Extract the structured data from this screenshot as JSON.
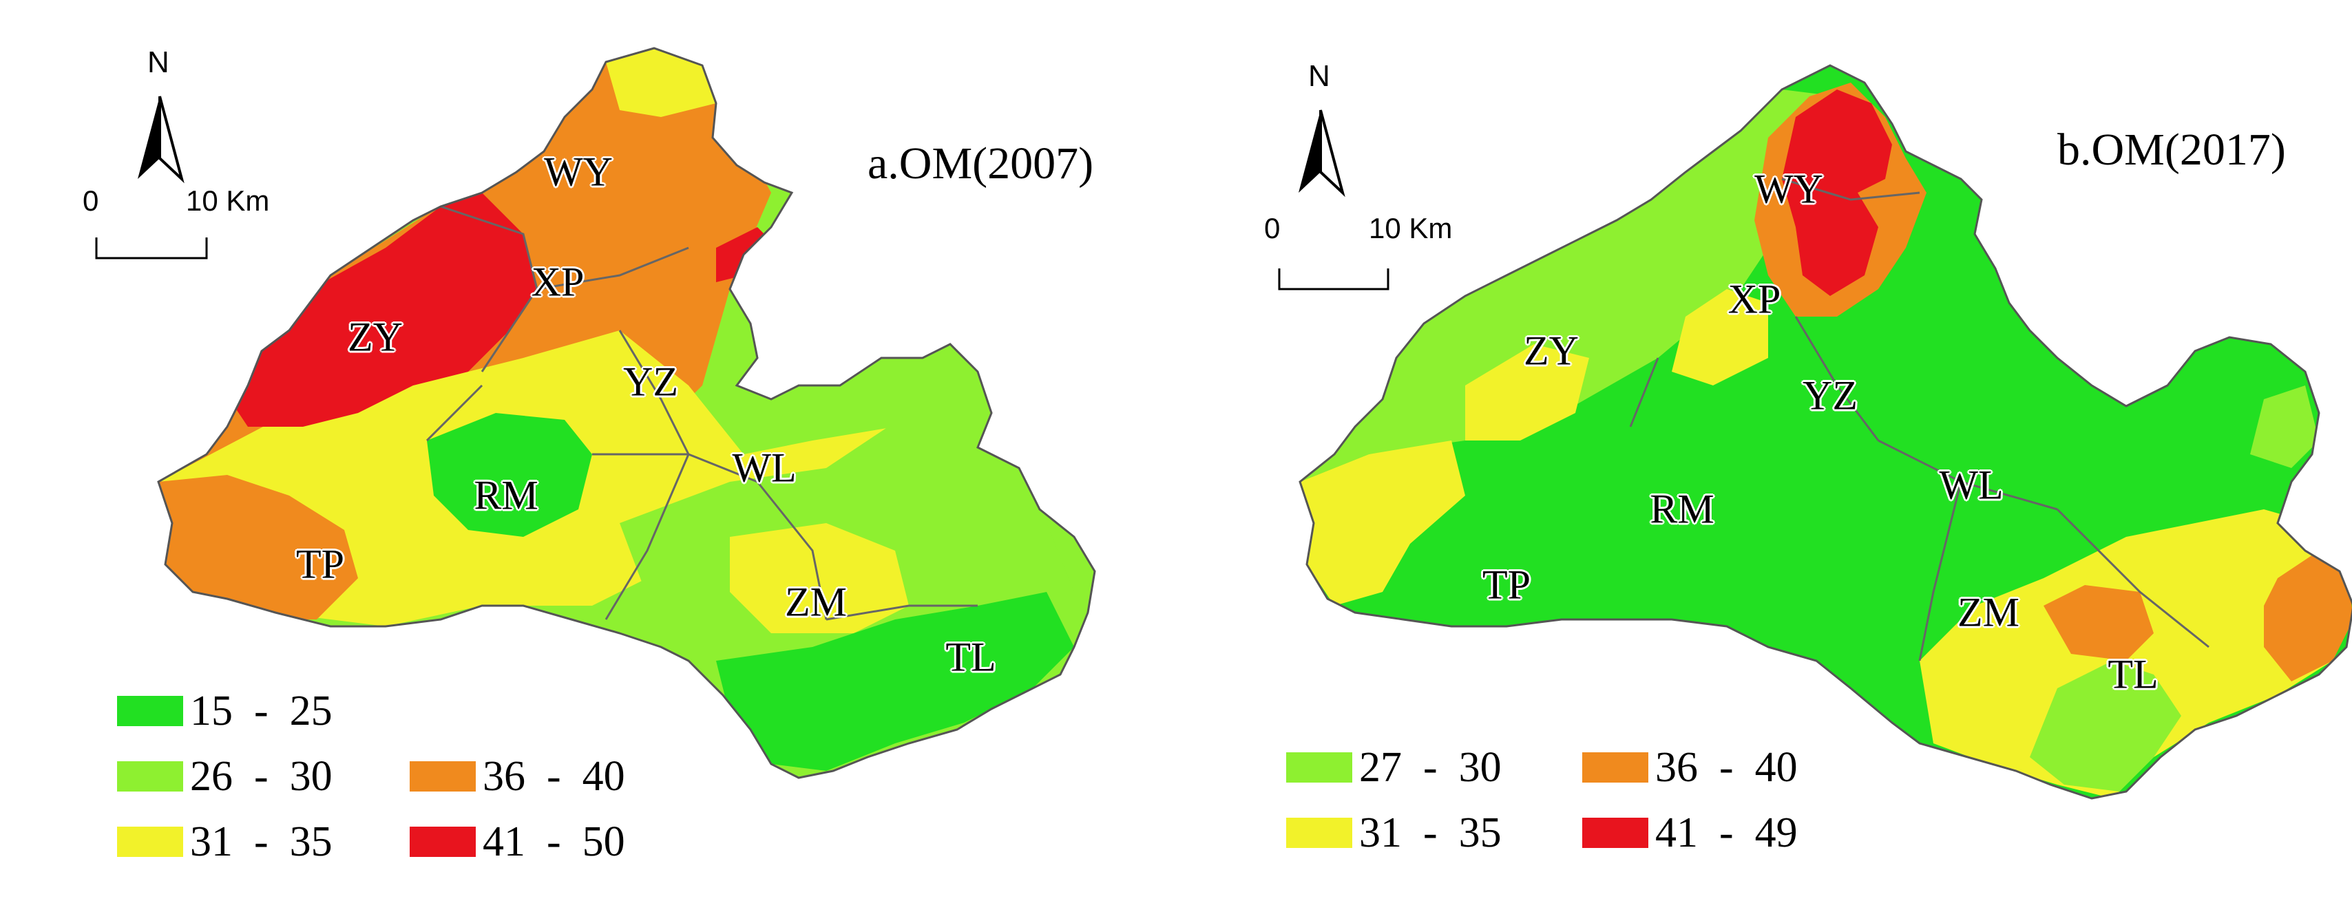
{
  "panels": [
    {
      "title": "a.OM(2007)",
      "north": "N",
      "scale": {
        "zero": "0",
        "distance": "10 Km"
      },
      "regions": [
        "WY",
        "XP",
        "ZY",
        "YZ",
        "RM",
        "WL",
        "TP",
        "ZM",
        "TL"
      ],
      "legend": [
        {
          "range": "15  -  25",
          "color": "#22e022"
        },
        {
          "range": "26  -  30",
          "color": "#8ef030"
        },
        {
          "range": "31  -  35",
          "color": "#f2f22a"
        },
        {
          "range": "36  -  40",
          "color": "#f08a1e"
        },
        {
          "range": "41  -  50",
          "color": "#e8141e"
        }
      ]
    },
    {
      "title": "b.OM(2017)",
      "north": "N",
      "scale": {
        "zero": "0",
        "distance": "10 Km"
      },
      "regions": [
        "WY",
        "XP",
        "ZY",
        "YZ",
        "RM",
        "WL",
        "TP",
        "ZM",
        "TL"
      ],
      "legend": [
        {
          "range": "27  -  30",
          "color": "#8ef030"
        },
        {
          "range": "31  -  35",
          "color": "#f2f22a"
        },
        {
          "range": "36  -  40",
          "color": "#f08a1e"
        },
        {
          "range": "41  -  49",
          "color": "#e8141e"
        }
      ]
    }
  ],
  "colors": {
    "green": "#22e022",
    "light_green": "#8ef030",
    "yellow": "#f2f22a",
    "orange": "#f08a1e",
    "red": "#e8141e"
  }
}
